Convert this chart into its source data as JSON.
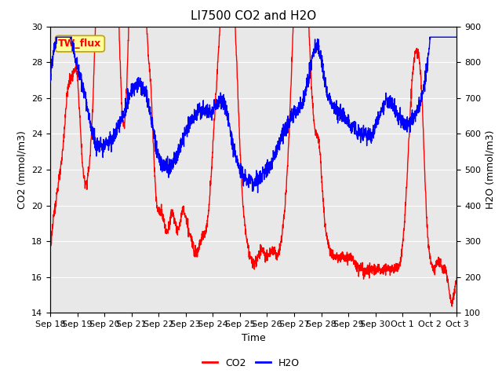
{
  "title": "LI7500 CO2 and H2O",
  "xlabel": "Time",
  "ylabel_left": "CO2 (mmol/m3)",
  "ylabel_right": "H2O (mmol/m3)",
  "ylim_left": [
    14,
    30
  ],
  "ylim_right": [
    100,
    900
  ],
  "yticks_left": [
    14,
    16,
    18,
    20,
    22,
    24,
    26,
    28,
    30
  ],
  "yticks_right": [
    100,
    200,
    300,
    400,
    500,
    600,
    700,
    800,
    900
  ],
  "co2_color": "#FF0000",
  "h2o_color": "#0000FF",
  "bg_color": "#E8E8E8",
  "legend_label": "TW_flux",
  "legend_box_color": "#FFFF99",
  "legend_box_edge": "#C8A000",
  "title_fontsize": 11,
  "axis_label_fontsize": 9,
  "tick_fontsize": 8,
  "linewidth": 1.0
}
